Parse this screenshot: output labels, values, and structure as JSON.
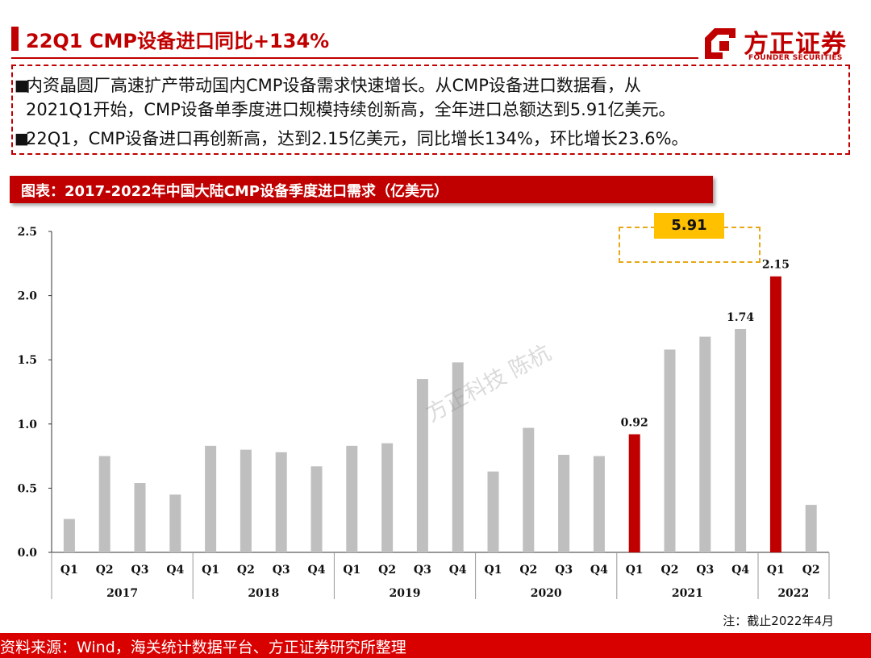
{
  "header": {
    "title": "22Q1 CMP设备进口同比+134%"
  },
  "logo": {
    "cn": "方正证券",
    "en": "FOUNDER SECURITIES"
  },
  "bullets": [
    {
      "line1": "内资晶圆厂高速扩产带动国内CMP设备需求快速增长。从CMP设备进口数据看，从",
      "line2": "2021Q1开始，CMP设备单季度进口规模持续创新高，全年进口总额达到5.91亿美元。"
    },
    {
      "line1": "22Q1，CMP设备进口再创新高，达到2.15亿美元，同比增长134%，环比增长23.6%。"
    }
  ],
  "chart_header": "图表：2017-2022年中国大陆CMP设备季度进口需求（亿美元）",
  "watermark": "方正科技 陈杭",
  "annotation": {
    "total_2021": "5.91"
  },
  "note": "注：截止2022年4月",
  "source": "资料来源：Wind，海关统计数据平台、方正证券研究所整理",
  "colors": {
    "accent": "#c00000",
    "bar_default": "#bfbfbf",
    "bar_highlight": "#c00000",
    "badge": "#ffc000"
  },
  "chart_data": {
    "type": "bar",
    "ylim": [
      0,
      2.5
    ],
    "yticks": [
      "0.0",
      "0.5",
      "1.0",
      "1.5",
      "2.0",
      "2.5"
    ],
    "groups": [
      {
        "year": "2017",
        "quarters": [
          "Q1",
          "Q2",
          "Q3",
          "Q4"
        ],
        "values": [
          0.26,
          0.75,
          0.54,
          0.45
        ]
      },
      {
        "year": "2018",
        "quarters": [
          "Q1",
          "Q2",
          "Q3",
          "Q4"
        ],
        "values": [
          0.83,
          0.8,
          0.78,
          0.67
        ]
      },
      {
        "year": "2019",
        "quarters": [
          "Q1",
          "Q2",
          "Q3",
          "Q4"
        ],
        "values": [
          0.83,
          0.85,
          1.35,
          1.48
        ]
      },
      {
        "year": "2020",
        "quarters": [
          "Q1",
          "Q2",
          "Q3",
          "Q4"
        ],
        "values": [
          0.63,
          0.97,
          0.76,
          0.75
        ]
      },
      {
        "year": "2021",
        "quarters": [
          "Q1",
          "Q2",
          "Q3",
          "Q4"
        ],
        "values": [
          0.92,
          1.58,
          1.68,
          1.74
        ]
      },
      {
        "year": "2022",
        "quarters": [
          "Q1",
          "Q2"
        ],
        "values": [
          2.15,
          0.37
        ]
      }
    ],
    "highlighted": [
      "2021-Q1",
      "2022-Q1"
    ],
    "data_labels": [
      {
        "key": "2021-Q1",
        "text": "0.92"
      },
      {
        "key": "2021-Q4",
        "text": "1.74"
      },
      {
        "key": "2022-Q1",
        "text": "2.15"
      }
    ]
  }
}
